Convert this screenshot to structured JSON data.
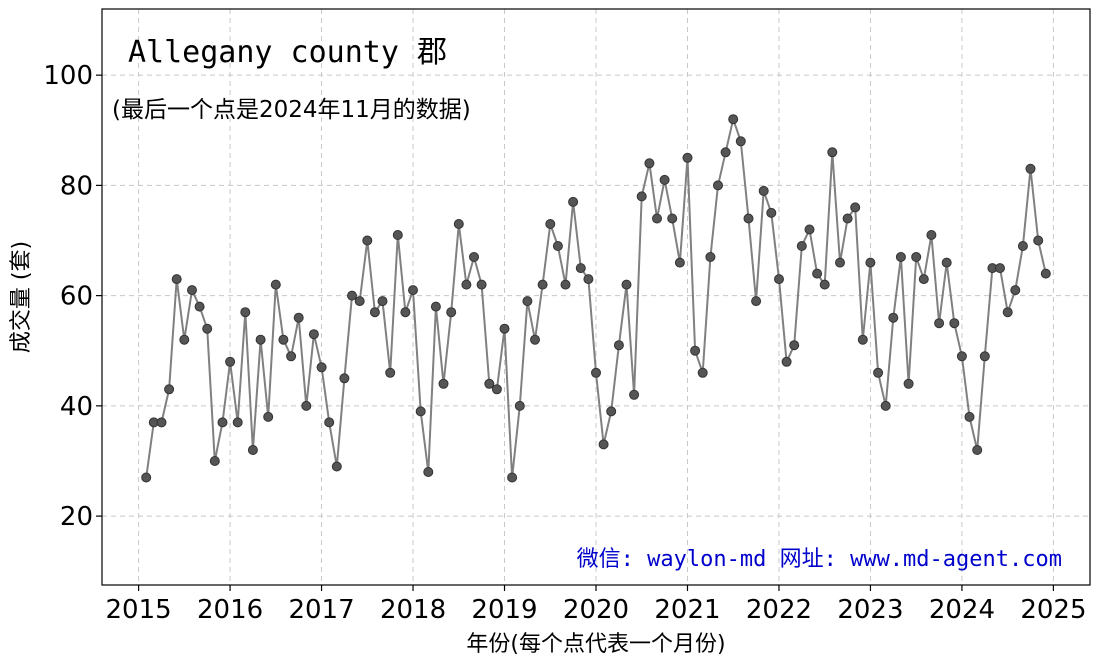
{
  "chart_data": {
    "type": "line",
    "title": "Allegany county 郡",
    "subtitle": "(最后一个点是2024年11月的数据)",
    "xlabel": "年份(每个点代表一个月份)",
    "ylabel": "成交量 (套)",
    "watermark": "微信: waylon-md  网址: www.md-agent.com",
    "xlim": [
      2014.6,
      2025.4
    ],
    "ylim": [
      7.5,
      112
    ],
    "xticks": [
      2015,
      2016,
      2017,
      2018,
      2019,
      2020,
      2021,
      2022,
      2023,
      2024,
      2025
    ],
    "xtick_labels": [
      "2015",
      "2016",
      "2017",
      "2018",
      "2019",
      "2020",
      "2021",
      "2022",
      "2023",
      "2024",
      "2025"
    ],
    "yticks": [
      20,
      40,
      60,
      80,
      100
    ],
    "ytick_labels": [
      "20",
      "40",
      "60",
      "80",
      "100"
    ],
    "grid": true,
    "line_color": "#808080",
    "marker_color": "#555555",
    "watermark_color": "#0000cc",
    "start": {
      "year": 2015,
      "month": 2
    },
    "series": [
      {
        "values": [
          27,
          37,
          37,
          43,
          63,
          52,
          61,
          58,
          54,
          30,
          37,
          48,
          37,
          57,
          32,
          52,
          38,
          62,
          52,
          49,
          56,
          40,
          53,
          47,
          37,
          29,
          45,
          60,
          59,
          70,
          57,
          59,
          46,
          71,
          57,
          61,
          39,
          28,
          58,
          44,
          57,
          73,
          62,
          67,
          62,
          44,
          43,
          54,
          27,
          40,
          59,
          52,
          62,
          73,
          69,
          62,
          77,
          65,
          63,
          46,
          33,
          39,
          51,
          62,
          42,
          78,
          84,
          74,
          81,
          74,
          66,
          85,
          50,
          46,
          67,
          80,
          86,
          92,
          88,
          74,
          59,
          79,
          75,
          63,
          48,
          51,
          69,
          72,
          64,
          62,
          86,
          66,
          74,
          76,
          52,
          66,
          46,
          40,
          56,
          67,
          44,
          67,
          63,
          71,
          55,
          66,
          55,
          49,
          38,
          32,
          49,
          65,
          65,
          57,
          61,
          69,
          83,
          70,
          64
        ]
      }
    ]
  }
}
